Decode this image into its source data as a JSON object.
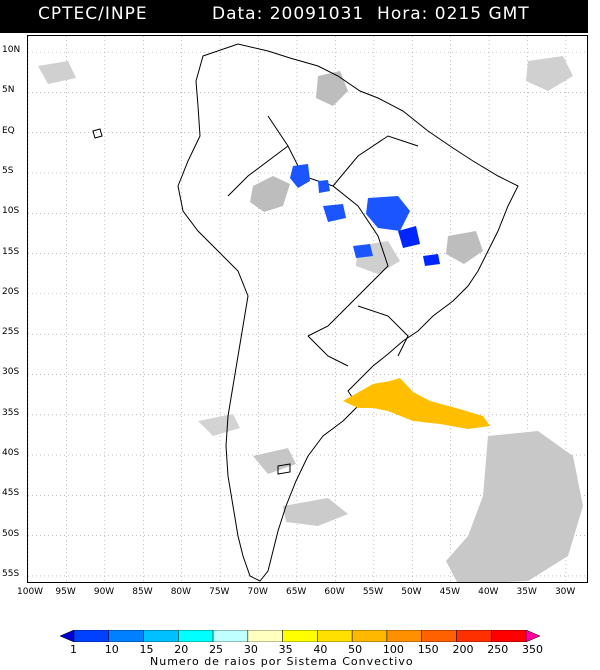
{
  "header": {
    "title": "CPTEC/INPE",
    "datetime": "Data: 20091031  Hora: 0215 GMT"
  },
  "map": {
    "lat_labels": [
      "10N",
      "5N",
      "EQ",
      "5S",
      "10S",
      "15S",
      "20S",
      "25S",
      "30S",
      "35S",
      "40S",
      "45S",
      "50S",
      "55S"
    ],
    "lon_labels": [
      "100W",
      "95W",
      "90W",
      "85W",
      "80W",
      "75W",
      "70W",
      "65W",
      "60W",
      "55W",
      "50W",
      "45W",
      "40W",
      "35W",
      "30W"
    ],
    "extent": {
      "lon_min": -100,
      "lon_max": -27,
      "lat_min": -56,
      "lat_max": 12
    },
    "colors": {
      "land_outline": "#000000",
      "cloud": "#bdbdbd",
      "cloud_light": "#d6d6d6",
      "storm_low": "#1a55ff",
      "storm_mid": "#0026ff",
      "storm_high": "#ffbf00"
    }
  },
  "legend": {
    "values": [
      "1",
      "10",
      "15",
      "20",
      "25",
      "30",
      "35",
      "40",
      "50",
      "100",
      "150",
      "200",
      "250",
      "350"
    ],
    "caption": "Numero de raios por Sistema Convectivo",
    "colors": [
      "#0000d0",
      "#0040ff",
      "#0080ff",
      "#00c0ff",
      "#00ffff",
      "#c0ffff",
      "#ffffc0",
      "#ffff00",
      "#ffe000",
      "#ffb800",
      "#ff9000",
      "#ff6000",
      "#ff3000",
      "#ff0000",
      "#ff00a0"
    ]
  }
}
